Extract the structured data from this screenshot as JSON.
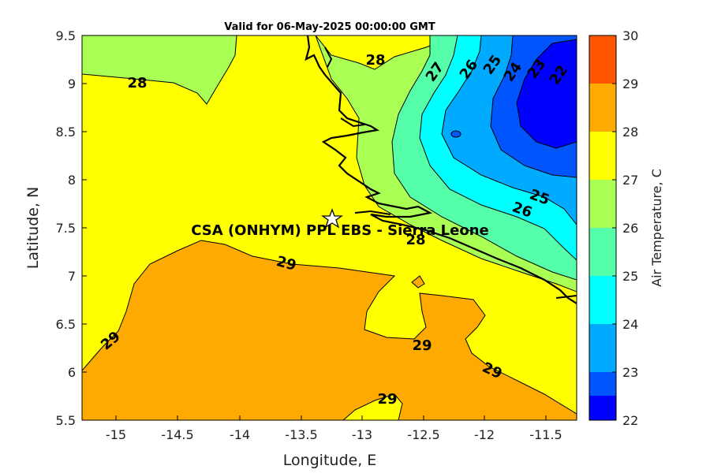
{
  "title": "Valid for 06-May-2025 00:00:00 GMT",
  "x_axis": {
    "label": "Longitude, E",
    "ticks": [
      "-15",
      "-14.5",
      "-14",
      "-13.5",
      "-13",
      "-12.5",
      "-12",
      "-11.5"
    ]
  },
  "y_axis": {
    "label": "Latitude, N",
    "ticks": [
      "9.5",
      "9",
      "8.5",
      "8",
      "7.5",
      "7",
      "6.5",
      "6",
      "5.5"
    ]
  },
  "colorbar": {
    "label": "Air Temperature, C",
    "ticks": [
      "30",
      "29",
      "28",
      "27",
      "26",
      "25",
      "24",
      "23",
      "22"
    ]
  },
  "site_label": "CSA (ONHYM) PPL EBS  - Sierra Leone",
  "contour_labels": [
    "28",
    "28",
    "27",
    "26",
    "25",
    "24",
    "23",
    "22",
    "25",
    "26",
    "28",
    "29",
    "29",
    "29",
    "29",
    "29"
  ],
  "colors": {
    "c22_23": "#0000ff",
    "c23_24": "#0055ff",
    "c24_25": "#00aaff",
    "c25_26": "#00ffff",
    "c26_27": "#55ffaa",
    "c27_28": "#aaff55",
    "c28_29": "#ffff00",
    "c29_30": "#ffaa00",
    "c30": "#ff5500"
  },
  "chart_data": {
    "type": "heatmap",
    "title": "Valid for 06-May-2025 00:00:00 GMT",
    "xlabel": "Longitude, E",
    "ylabel": "Latitude, N",
    "xlim": [
      -15.25,
      -11.25
    ],
    "ylim": [
      5.5,
      9.5
    ],
    "colorbar_range": [
      22,
      30
    ],
    "colorbar_levels": [
      22,
      23,
      24,
      25,
      26,
      27,
      28,
      29,
      30
    ],
    "site": {
      "name": "CSA (ONHYM) PPL EBS  - Sierra Leone",
      "lon": -13.22,
      "lat": 7.6
    },
    "contour_label_positions": [
      {
        "value": 28,
        "lon": -14.85,
        "lat": 9.0
      },
      {
        "value": 28,
        "lon": -12.65,
        "lat": 9.25
      },
      {
        "value": 27,
        "lon": -12.45,
        "lat": 9.1
      },
      {
        "value": 26,
        "lon": -12.1,
        "lat": 9.12
      },
      {
        "value": 25,
        "lon": -11.9,
        "lat": 9.2
      },
      {
        "value": 24,
        "lon": -11.72,
        "lat": 9.1
      },
      {
        "value": 23,
        "lon": -11.58,
        "lat": 9.12
      },
      {
        "value": 22,
        "lon": -11.4,
        "lat": 9.05
      },
      {
        "value": 25,
        "lon": -11.65,
        "lat": 7.85
      },
      {
        "value": 26,
        "lon": -11.85,
        "lat": 7.72
      },
      {
        "value": 28,
        "lon": -12.53,
        "lat": 7.4
      },
      {
        "value": 29,
        "lon": -13.4,
        "lat": 7.15
      },
      {
        "value": 29,
        "lon": -15.0,
        "lat": 6.32
      },
      {
        "value": 29,
        "lon": -12.3,
        "lat": 6.28
      },
      {
        "value": 29,
        "lon": -11.85,
        "lat": 6.02
      },
      {
        "value": 29,
        "lon": -12.75,
        "lat": 5.72
      }
    ]
  }
}
